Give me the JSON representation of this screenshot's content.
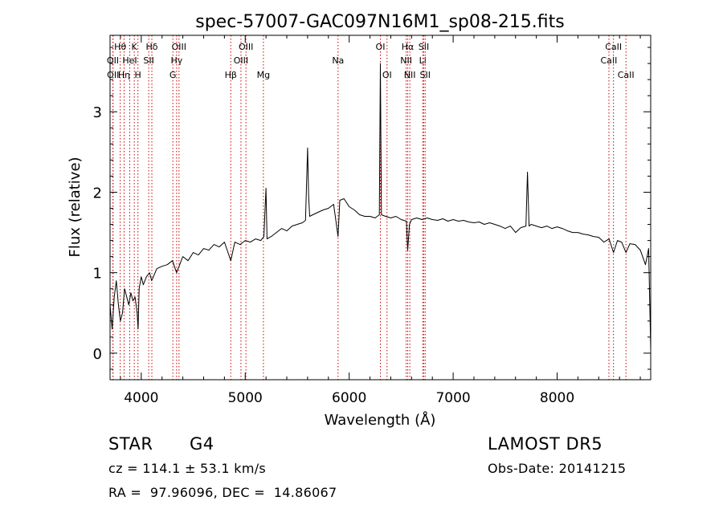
{
  "chart_data": {
    "type": "line",
    "title": "spec-57007-GAC097N16M1_sp08-215.fits",
    "xlabel": "Wavelength (Å)",
    "ylabel": "Flux (relative)",
    "xlim": [
      3700,
      8900
    ],
    "ylim": [
      -0.33,
      3.95
    ],
    "xticks": [
      4000,
      5000,
      6000,
      7000,
      8000
    ],
    "xtick_labels": [
      "4000",
      "5000",
      "6000",
      "7000",
      "8000"
    ],
    "yticks": [
      0,
      1,
      2,
      3
    ],
    "ytick_labels": [
      "0",
      "1",
      "2",
      "3"
    ],
    "grid": false,
    "line_color": "#000000",
    "marker_color": "#cc0000",
    "series": [
      {
        "points": [
          [
            3700,
            0.6
          ],
          [
            3720,
            0.3
          ],
          [
            3740,
            0.7
          ],
          [
            3760,
            0.9
          ],
          [
            3780,
            0.6
          ],
          [
            3800,
            0.4
          ],
          [
            3820,
            0.5
          ],
          [
            3840,
            0.8
          ],
          [
            3860,
            0.7
          ],
          [
            3880,
            0.6
          ],
          [
            3900,
            0.75
          ],
          [
            3920,
            0.65
          ],
          [
            3940,
            0.7
          ],
          [
            3960,
            0.5
          ],
          [
            3970,
            0.3
          ],
          [
            3980,
            0.8
          ],
          [
            4000,
            0.95
          ],
          [
            4020,
            0.85
          ],
          [
            4050,
            0.95
          ],
          [
            4080,
            1.0
          ],
          [
            4100,
            0.9
          ],
          [
            4150,
            1.05
          ],
          [
            4200,
            1.08
          ],
          [
            4250,
            1.1
          ],
          [
            4300,
            1.15
          ],
          [
            4340,
            1.0
          ],
          [
            4400,
            1.2
          ],
          [
            4450,
            1.15
          ],
          [
            4500,
            1.25
          ],
          [
            4550,
            1.22
          ],
          [
            4600,
            1.3
          ],
          [
            4650,
            1.28
          ],
          [
            4700,
            1.35
          ],
          [
            4750,
            1.32
          ],
          [
            4800,
            1.38
          ],
          [
            4861,
            1.15
          ],
          [
            4900,
            1.38
          ],
          [
            4950,
            1.35
          ],
          [
            5000,
            1.4
          ],
          [
            5050,
            1.38
          ],
          [
            5100,
            1.42
          ],
          [
            5150,
            1.4
          ],
          [
            5180,
            1.45
          ],
          [
            5200,
            2.05
          ],
          [
            5210,
            1.42
          ],
          [
            5250,
            1.45
          ],
          [
            5300,
            1.5
          ],
          [
            5350,
            1.55
          ],
          [
            5400,
            1.52
          ],
          [
            5450,
            1.58
          ],
          [
            5500,
            1.6
          ],
          [
            5550,
            1.62
          ],
          [
            5580,
            1.65
          ],
          [
            5600,
            2.55
          ],
          [
            5610,
            1.95
          ],
          [
            5620,
            1.7
          ],
          [
            5650,
            1.72
          ],
          [
            5700,
            1.75
          ],
          [
            5750,
            1.78
          ],
          [
            5800,
            1.8
          ],
          [
            5850,
            1.85
          ],
          [
            5893,
            1.45
          ],
          [
            5910,
            1.9
          ],
          [
            5950,
            1.92
          ],
          [
            6000,
            1.82
          ],
          [
            6050,
            1.78
          ],
          [
            6100,
            1.72
          ],
          [
            6150,
            1.7
          ],
          [
            6200,
            1.7
          ],
          [
            6250,
            1.68
          ],
          [
            6290,
            1.72
          ],
          [
            6300,
            3.6
          ],
          [
            6310,
            1.72
          ],
          [
            6350,
            1.7
          ],
          [
            6400,
            1.68
          ],
          [
            6450,
            1.7
          ],
          [
            6500,
            1.66
          ],
          [
            6550,
            1.64
          ],
          [
            6563,
            1.28
          ],
          [
            6580,
            1.6
          ],
          [
            6600,
            1.66
          ],
          [
            6650,
            1.68
          ],
          [
            6700,
            1.66
          ],
          [
            6750,
            1.68
          ],
          [
            6800,
            1.66
          ],
          [
            6850,
            1.65
          ],
          [
            6900,
            1.67
          ],
          [
            6950,
            1.64
          ],
          [
            7000,
            1.66
          ],
          [
            7050,
            1.64
          ],
          [
            7100,
            1.65
          ],
          [
            7150,
            1.63
          ],
          [
            7200,
            1.62
          ],
          [
            7250,
            1.63
          ],
          [
            7300,
            1.6
          ],
          [
            7350,
            1.62
          ],
          [
            7400,
            1.6
          ],
          [
            7450,
            1.58
          ],
          [
            7500,
            1.55
          ],
          [
            7550,
            1.58
          ],
          [
            7600,
            1.5
          ],
          [
            7650,
            1.56
          ],
          [
            7700,
            1.58
          ],
          [
            7715,
            2.25
          ],
          [
            7730,
            1.58
          ],
          [
            7750,
            1.6
          ],
          [
            7800,
            1.58
          ],
          [
            7850,
            1.56
          ],
          [
            7900,
            1.58
          ],
          [
            7950,
            1.55
          ],
          [
            8000,
            1.57
          ],
          [
            8050,
            1.55
          ],
          [
            8100,
            1.52
          ],
          [
            8150,
            1.5
          ],
          [
            8200,
            1.5
          ],
          [
            8250,
            1.48
          ],
          [
            8300,
            1.47
          ],
          [
            8350,
            1.45
          ],
          [
            8400,
            1.44
          ],
          [
            8450,
            1.38
          ],
          [
            8500,
            1.42
          ],
          [
            8542,
            1.25
          ],
          [
            8580,
            1.4
          ],
          [
            8620,
            1.38
          ],
          [
            8662,
            1.25
          ],
          [
            8700,
            1.36
          ],
          [
            8750,
            1.35
          ],
          [
            8800,
            1.28
          ],
          [
            8850,
            1.1
          ],
          [
            8880,
            1.3
          ],
          [
            8900,
            0.05
          ]
        ]
      }
    ],
    "line_markers": [
      {
        "wl": 3727,
        "label": "OII",
        "row": 2
      },
      {
        "wl": 3729,
        "label": "OII",
        "row": 3
      },
      {
        "wl": 3798,
        "label": "Hθ",
        "row": 1
      },
      {
        "wl": 3835,
        "label": "Hη",
        "row": 3
      },
      {
        "wl": 3889,
        "label": "HeI",
        "row": 2
      },
      {
        "wl": 3933,
        "label": "K",
        "row": 1
      },
      {
        "wl": 3968,
        "label": "H",
        "row": 3
      },
      {
        "wl": 4072,
        "label": "SII",
        "row": 2
      },
      {
        "wl": 4102,
        "label": "Hδ",
        "row": 1
      },
      {
        "wl": 4304,
        "label": "G",
        "row": 3
      },
      {
        "wl": 4340,
        "label": "Hγ",
        "row": 2
      },
      {
        "wl": 4363,
        "label": "OIII",
        "row": 1
      },
      {
        "wl": 4861,
        "label": "Hβ",
        "row": 3
      },
      {
        "wl": 4959,
        "label": "OIII",
        "row": 2
      },
      {
        "wl": 5007,
        "label": "OIII",
        "row": 1
      },
      {
        "wl": 5175,
        "label": "Mg",
        "row": 3
      },
      {
        "wl": 5893,
        "label": "Na",
        "row": 2
      },
      {
        "wl": 6300,
        "label": "OI",
        "row": 1
      },
      {
        "wl": 6364,
        "label": "OI",
        "row": 3
      },
      {
        "wl": 6548,
        "label": "NII",
        "row": 2
      },
      {
        "wl": 6563,
        "label": "Hα",
        "row": 1
      },
      {
        "wl": 6583,
        "label": "NII",
        "row": 3
      },
      {
        "wl": 6707,
        "label": "Li",
        "row": 2
      },
      {
        "wl": 6717,
        "label": "SII",
        "row": 1
      },
      {
        "wl": 6731,
        "label": "SII",
        "row": 3
      },
      {
        "wl": 8498,
        "label": "CaII",
        "row": 2
      },
      {
        "wl": 8542,
        "label": "CaII",
        "row": 1
      },
      {
        "wl": 8662,
        "label": "CaII",
        "row": 3
      }
    ]
  },
  "info": {
    "object_class": "STAR",
    "subclass": "G4",
    "survey": "LAMOST DR5",
    "velocity": "cz = 114.1 ± 53.1 km/s",
    "obs_date": "Obs-Date: 20141215",
    "coordinates": "RA =  97.96096, DEC =  14.86067"
  }
}
